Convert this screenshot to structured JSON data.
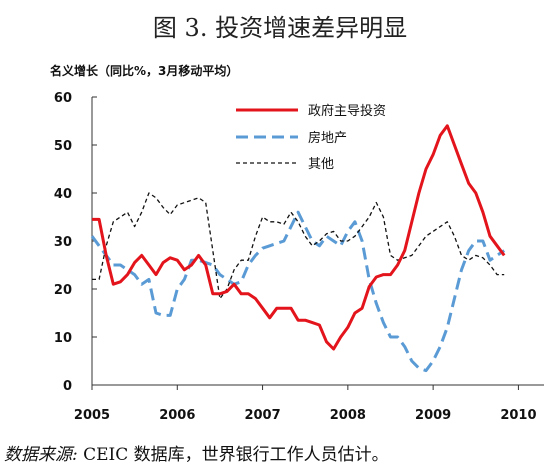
{
  "title": "图 3. 投资增速差异明显",
  "ylabel": "名义增长（同比%，3月移动平均）",
  "source": {
    "label": "数据来源:",
    "text": "CEIC 数据库，世界银行工作人员估计。"
  },
  "chart_data": {
    "type": "line",
    "title": "图 3. 投资增速差异明显",
    "ylabel": "名义增长（同比%，3月移动平均）",
    "xlabel": "",
    "ylim": [
      0,
      60
    ],
    "xlim": [
      2005.0,
      2010.3
    ],
    "yticks": [
      0,
      10,
      20,
      30,
      40,
      50,
      60
    ],
    "xticks": [
      "2005",
      "2006",
      "2007",
      "2008",
      "2009",
      "2010"
    ],
    "x_start": 2005.0,
    "x_step": 0.08333,
    "grid": false,
    "legend_position": "top-center",
    "series": [
      {
        "name": "政府主导投资",
        "color": "#e3141b",
        "style": "solid",
        "values": [
          34.5,
          34.5,
          27,
          21,
          21.5,
          23,
          25.5,
          27,
          25,
          23,
          25.5,
          26.5,
          26,
          24,
          25,
          27,
          25,
          19,
          19,
          19.5,
          21,
          19,
          19,
          18,
          16,
          14,
          16,
          16,
          16,
          13.5,
          13.5,
          13,
          12.5,
          9,
          7.5,
          10,
          12,
          15,
          16,
          20.5,
          22.5,
          23,
          23,
          25,
          28,
          34,
          40,
          45,
          48,
          52,
          54,
          50,
          46,
          42,
          40,
          36,
          31,
          29,
          27
        ]
      },
      {
        "name": "房地产",
        "color": "#5b9bd5",
        "style": "dashed",
        "values": [
          31,
          29,
          27,
          25,
          25,
          24,
          23,
          21,
          22,
          15,
          14.5,
          14.5,
          20,
          22,
          26,
          26,
          25.5,
          25,
          23,
          22,
          21,
          21.5,
          25,
          27,
          28.5,
          29,
          29.5,
          30,
          33,
          36,
          33,
          30,
          29,
          31,
          30,
          29,
          32,
          34,
          30,
          22,
          17,
          13,
          10,
          10,
          8,
          5,
          3.5,
          3,
          5,
          8,
          12,
          18,
          24,
          28,
          30,
          30,
          26,
          27,
          28
        ]
      },
      {
        "name": "其他",
        "color": "#111111",
        "style": "dotted",
        "values": [
          22,
          22,
          29,
          34,
          35,
          36,
          33,
          36,
          40,
          39,
          37,
          35.5,
          37.5,
          38,
          38.5,
          39,
          38,
          28,
          18,
          20,
          24,
          26,
          26,
          31,
          35,
          34,
          34,
          33.5,
          36,
          34,
          31,
          29,
          30,
          31.5,
          32,
          30,
          30,
          31,
          33,
          35,
          38,
          35,
          27,
          26,
          26.5,
          27,
          29,
          31,
          32,
          33,
          34,
          31,
          27,
          26,
          27,
          26.5,
          25,
          23,
          23
        ]
      }
    ]
  }
}
